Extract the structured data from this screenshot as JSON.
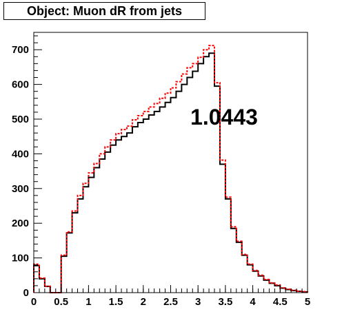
{
  "chart_data": {
    "type": "histogram",
    "title": "Object: Muon dR from jets",
    "annotation": "1.0443",
    "xlim": [
      0,
      5
    ],
    "ylim": [
      0,
      750
    ],
    "x_ticks": [
      "0",
      "0.5",
      "1",
      "1.5",
      "2",
      "2.5",
      "3",
      "3.5",
      "4",
      "4.5",
      "5"
    ],
    "y_ticks": [
      "0",
      "100",
      "200",
      "300",
      "400",
      "500",
      "600",
      "700"
    ],
    "bin_width": 0.1,
    "grid": false,
    "series": [
      {
        "color": "#000000",
        "style": "solid",
        "values": [
          78,
          40,
          18,
          0,
          0,
          105,
          172,
          230,
          270,
          305,
          332,
          360,
          385,
          405,
          425,
          440,
          450,
          460,
          478,
          490,
          500,
          512,
          522,
          535,
          548,
          562,
          580,
          600,
          620,
          638,
          660,
          680,
          690,
          595,
          370,
          270,
          185,
          145,
          108,
          80,
          62,
          48,
          36,
          27,
          20,
          13,
          9,
          6,
          4,
          2,
          1
        ]
      },
      {
        "color": "#ff0000",
        "style": "dashed",
        "values": [
          82,
          42,
          18,
          0,
          0,
          108,
          175,
          235,
          280,
          315,
          345,
          372,
          400,
          420,
          440,
          458,
          470,
          480,
          498,
          510,
          522,
          535,
          545,
          560,
          575,
          590,
          608,
          630,
          648,
          660,
          678,
          700,
          712,
          605,
          382,
          275,
          190,
          148,
          110,
          82,
          64,
          50,
          38,
          28,
          22,
          14,
          10,
          7,
          4,
          3,
          1
        ]
      }
    ]
  }
}
